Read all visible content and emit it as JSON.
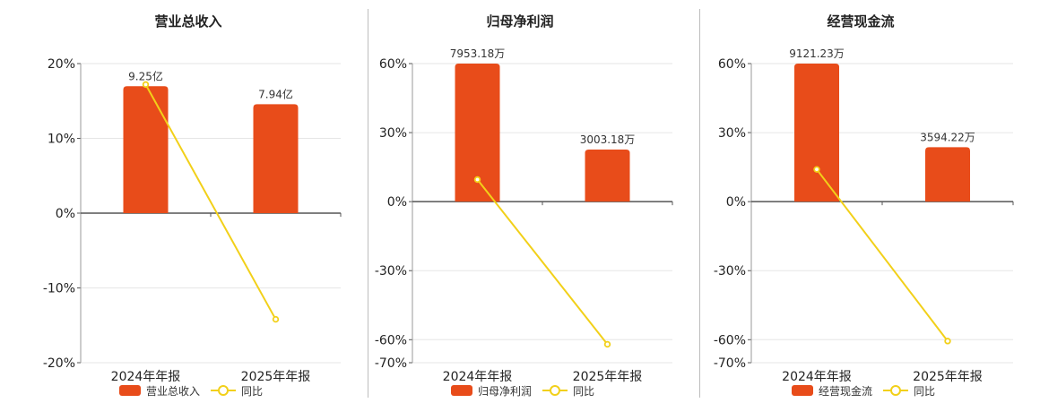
{
  "chart_data": [
    {
      "type": "bar",
      "title": "营业总收入",
      "categories": [
        "2024年年报",
        "2025年年报"
      ],
      "bar_labels": [
        "9.25亿",
        "7.94亿"
      ],
      "bar_values": [
        9.25,
        7.94
      ],
      "bar_unit": "亿",
      "bar_max": 10.9,
      "yoy": [
        17.2,
        -14.2
      ],
      "yaxis": {
        "min": -20,
        "max": 20,
        "ticks": [
          -20,
          -10,
          0,
          10,
          20
        ]
      },
      "tick_labels": [
        "-20%",
        "-10%",
        "0%",
        "10%",
        "20%"
      ],
      "legend": [
        "营业总收入",
        "同比"
      ],
      "grid": true,
      "legend_position": "bottom"
    },
    {
      "type": "bar",
      "title": "归母净利润",
      "categories": [
        "2024年年报",
        "2025年年报"
      ],
      "bar_labels": [
        "7953.18万",
        "3003.18万"
      ],
      "bar_values": [
        7953.18,
        3003.18
      ],
      "bar_unit": "万",
      "bar_max": 7953.18,
      "yoy": [
        9.6,
        -62
      ],
      "yaxis": {
        "min": -70,
        "max": 60,
        "ticks": [
          -70,
          -60,
          -30,
          0,
          30,
          60
        ]
      },
      "tick_labels": [
        "-70%",
        "-60%",
        "-30%",
        "0%",
        "30%",
        "60%"
      ],
      "legend": [
        "归母净利润",
        "同比"
      ],
      "grid": true,
      "legend_position": "bottom"
    },
    {
      "type": "bar",
      "title": "经营现金流",
      "categories": [
        "2024年年报",
        "2025年年报"
      ],
      "bar_labels": [
        "9121.23万",
        "3594.22万"
      ],
      "bar_values": [
        9121.23,
        3594.22
      ],
      "bar_unit": "万",
      "bar_max": 9121.23,
      "yoy": [
        14,
        -60.6
      ],
      "yaxis": {
        "min": -70,
        "max": 60,
        "ticks": [
          -70,
          -60,
          -30,
          0,
          30,
          60
        ]
      },
      "tick_labels": [
        "-70%",
        "-60%",
        "-30%",
        "0%",
        "30%",
        "60%"
      ],
      "legend": [
        "经营现金流",
        "同比"
      ],
      "grid": true,
      "legend_position": "bottom"
    }
  ],
  "colors": {
    "bar": "#e84c1a",
    "line": "#f2d019",
    "axis": "#555555",
    "grid": "#e6e6e6",
    "text": "#333333"
  }
}
